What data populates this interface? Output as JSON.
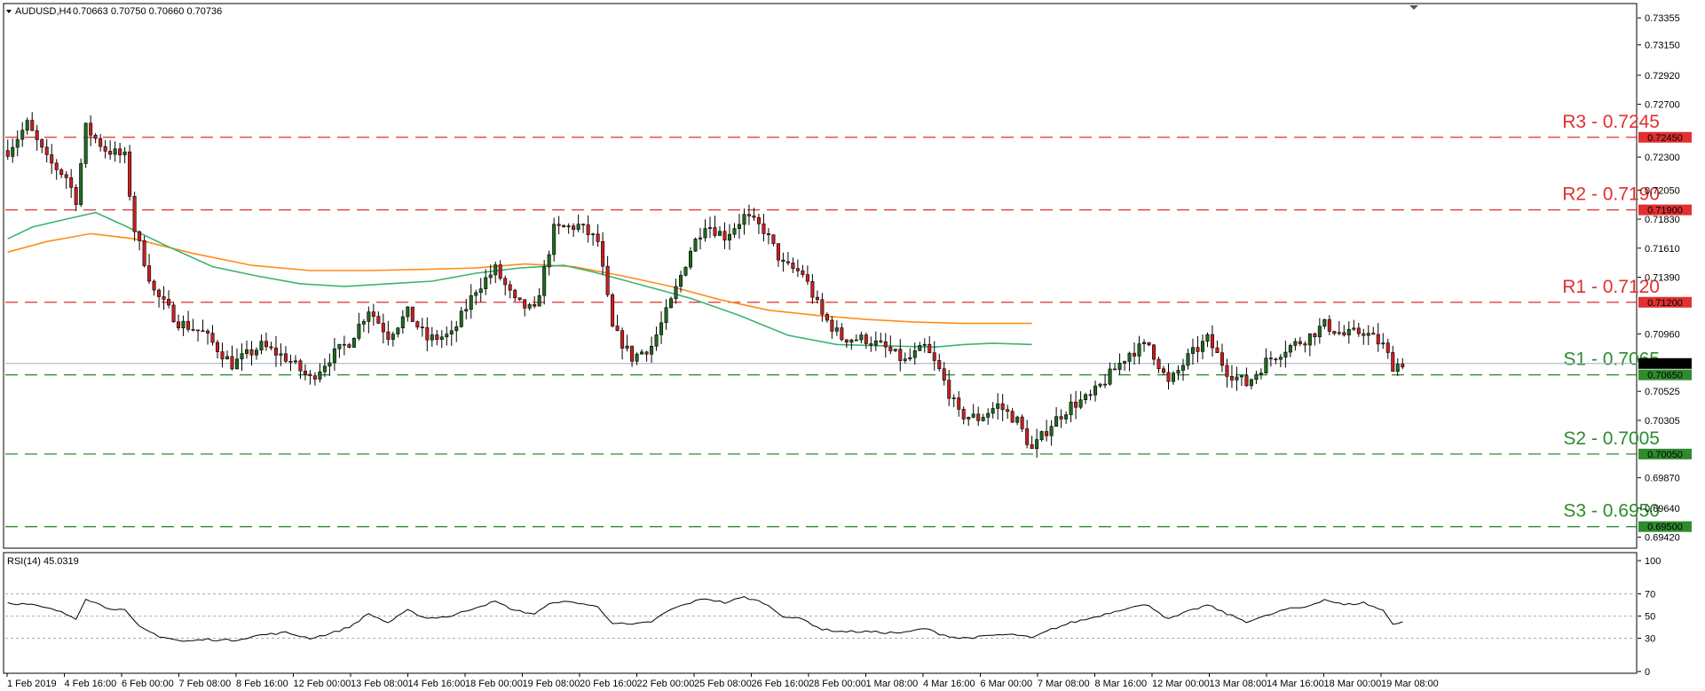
{
  "header": {
    "symbol": "AUDUSD,H4",
    "ohlc": "0.70663 0.70750 0.70660 0.70736"
  },
  "rsi_header": "RSI(14) 45.0319",
  "colors": {
    "bull": "#1e6b1e",
    "bear": "#cc1f1f",
    "ma_fast": "#3cb371",
    "ma_slow": "#ff8c1a",
    "resistance": "#e03030",
    "support": "#2e8b2e",
    "price_line": "#9fb0c0",
    "rsi": "#000000"
  },
  "chart_data": {
    "type": "candlestick",
    "ylim": [
      0.6935,
      0.7345
    ],
    "price_ticks": [
      "0.73355",
      "0.73150",
      "0.72920",
      "0.72700",
      "0.72450",
      "0.72300",
      "0.72050",
      "0.71900",
      "0.71830",
      "0.71610",
      "0.71390",
      "0.71200",
      "0.70960",
      "0.70736",
      "0.70650",
      "0.70525",
      "0.70305",
      "0.70050",
      "0.69870",
      "0.69640",
      "0.69500",
      "0.69420"
    ],
    "time_labels": [
      "1 Feb 2019",
      "4 Feb 16:00",
      "6 Feb 00:00",
      "7 Feb 08:00",
      "8 Feb 16:00",
      "12 Feb 00:00",
      "13 Feb 08:00",
      "14 Feb 16:00",
      "18 Feb 00:00",
      "19 Feb 08:00",
      "20 Feb 16:00",
      "22 Feb 00:00",
      "25 Feb 08:00",
      "26 Feb 16:00",
      "28 Feb 00:00",
      "1 Mar 08:00",
      "4 Mar 16:00",
      "6 Mar 00:00",
      "7 Mar 08:00",
      "8 Mar 16:00",
      "12 Mar 00:00",
      "13 Mar 08:00",
      "14 Mar 16:00",
      "18 Mar 00:00",
      "19 Mar 08:00"
    ],
    "current_price": 0.70736,
    "levels": [
      {
        "label": "R3 - 0.7245",
        "price": 0.7245,
        "tag": "0.72450",
        "kind": "resistance"
      },
      {
        "label": "R2 - 0.7190",
        "price": 0.719,
        "tag": "0.71900",
        "kind": "resistance"
      },
      {
        "label": "R1 - 0.7120",
        "price": 0.712,
        "tag": "0.71200",
        "kind": "resistance"
      },
      {
        "label": "S1 - 0.7065",
        "price": 0.7065,
        "tag": "0.70650",
        "kind": "support"
      },
      {
        "label": "S2 - 0.7005",
        "price": 0.7005,
        "tag": "0.70050",
        "kind": "support"
      },
      {
        "label": "S3 - 0.6950",
        "price": 0.695,
        "tag": "0.69500",
        "kind": "support"
      }
    ],
    "ma_fast": [
      [
        0,
        0.7168
      ],
      [
        5,
        0.7177
      ],
      [
        12,
        0.7183
      ],
      [
        18,
        0.7188
      ],
      [
        24,
        0.7178
      ],
      [
        33,
        0.7162
      ],
      [
        42,
        0.7147
      ],
      [
        51,
        0.714
      ],
      [
        60,
        0.7134
      ],
      [
        69,
        0.7132
      ],
      [
        78,
        0.7134
      ],
      [
        87,
        0.7136
      ],
      [
        96,
        0.7142
      ],
      [
        105,
        0.7146
      ],
      [
        114,
        0.7148
      ],
      [
        120,
        0.7143
      ],
      [
        130,
        0.7133
      ],
      [
        140,
        0.7123
      ],
      [
        150,
        0.711
      ],
      [
        160,
        0.7095
      ],
      [
        170,
        0.7088
      ],
      [
        180,
        0.7087
      ],
      [
        190,
        0.7086
      ],
      [
        196,
        0.7088
      ],
      [
        202,
        0.7089
      ],
      [
        210,
        0.7088
      ]
    ],
    "ma_slow": [
      [
        0,
        0.7158
      ],
      [
        8,
        0.7166
      ],
      [
        17,
        0.7172
      ],
      [
        26,
        0.7168
      ],
      [
        38,
        0.7157
      ],
      [
        50,
        0.7148
      ],
      [
        62,
        0.7144
      ],
      [
        74,
        0.7144
      ],
      [
        86,
        0.7145
      ],
      [
        96,
        0.7146
      ],
      [
        106,
        0.7149
      ],
      [
        116,
        0.7147
      ],
      [
        126,
        0.714
      ],
      [
        136,
        0.7132
      ],
      [
        146,
        0.7122
      ],
      [
        156,
        0.7114
      ],
      [
        166,
        0.711
      ],
      [
        176,
        0.7107
      ],
      [
        186,
        0.7105
      ],
      [
        196,
        0.7104
      ],
      [
        204,
        0.7104
      ],
      [
        210,
        0.7104
      ]
    ],
    "price_path": [
      [
        0,
        0.7235
      ],
      [
        4,
        0.7255
      ],
      [
        8,
        0.7228
      ],
      [
        12,
        0.7215
      ],
      [
        14,
        0.7198
      ],
      [
        16,
        0.7252
      ],
      [
        20,
        0.7236
      ],
      [
        24,
        0.723
      ],
      [
        26,
        0.7175
      ],
      [
        30,
        0.7128
      ],
      [
        35,
        0.7105
      ],
      [
        40,
        0.7097
      ],
      [
        46,
        0.7073
      ],
      [
        52,
        0.7087
      ],
      [
        57,
        0.7078
      ],
      [
        62,
        0.7062
      ],
      [
        66,
        0.7078
      ],
      [
        70,
        0.709
      ],
      [
        74,
        0.7115
      ],
      [
        78,
        0.7095
      ],
      [
        82,
        0.7112
      ],
      [
        86,
        0.7092
      ],
      [
        91,
        0.7095
      ],
      [
        96,
        0.713
      ],
      [
        100,
        0.7145
      ],
      [
        104,
        0.712
      ],
      [
        108,
        0.7113
      ],
      [
        112,
        0.7175
      ],
      [
        117,
        0.7178
      ],
      [
        121,
        0.7166
      ],
      [
        124,
        0.71
      ],
      [
        128,
        0.7078
      ],
      [
        132,
        0.7087
      ],
      [
        136,
        0.712
      ],
      [
        140,
        0.716
      ],
      [
        143,
        0.718
      ],
      [
        147,
        0.717
      ],
      [
        151,
        0.7185
      ],
      [
        155,
        0.7175
      ],
      [
        159,
        0.7148
      ],
      [
        163,
        0.7142
      ],
      [
        167,
        0.711
      ],
      [
        171,
        0.7093
      ],
      [
        176,
        0.7092
      ],
      [
        180,
        0.7085
      ],
      [
        184,
        0.7075
      ],
      [
        188,
        0.7086
      ],
      [
        191,
        0.7068
      ],
      [
        195,
        0.7035
      ],
      [
        199,
        0.7032
      ],
      [
        203,
        0.7042
      ],
      [
        207,
        0.703
      ],
      [
        210,
        0.7008
      ],
      [
        214,
        0.7028
      ],
      [
        218,
        0.7042
      ],
      [
        222,
        0.7048
      ],
      [
        226,
        0.7065
      ],
      [
        230,
        0.7082
      ],
      [
        234,
        0.7088
      ],
      [
        238,
        0.7058
      ],
      [
        242,
        0.7078
      ],
      [
        246,
        0.7092
      ],
      [
        250,
        0.7068
      ],
      [
        254,
        0.7058
      ],
      [
        258,
        0.7075
      ],
      [
        262,
        0.7085
      ],
      [
        266,
        0.7092
      ],
      [
        270,
        0.7103
      ],
      [
        274,
        0.7095
      ],
      [
        278,
        0.7098
      ],
      [
        282,
        0.7087
      ],
      [
        284,
        0.7072
      ],
      [
        286,
        0.7074
      ]
    ],
    "rsi": {
      "ylim": [
        0,
        100
      ],
      "ticks": [
        100,
        70,
        50,
        30,
        0
      ],
      "values": [
        [
          0,
          62
        ],
        [
          5,
          60
        ],
        [
          10,
          55
        ],
        [
          14,
          48
        ],
        [
          16,
          66
        ],
        [
          20,
          58
        ],
        [
          24,
          55
        ],
        [
          27,
          40
        ],
        [
          31,
          32
        ],
        [
          36,
          27
        ],
        [
          41,
          29
        ],
        [
          46,
          28
        ],
        [
          52,
          33
        ],
        [
          57,
          35
        ],
        [
          62,
          30
        ],
        [
          66,
          34
        ],
        [
          70,
          40
        ],
        [
          74,
          52
        ],
        [
          78,
          44
        ],
        [
          82,
          55
        ],
        [
          86,
          48
        ],
        [
          91,
          50
        ],
        [
          96,
          58
        ],
        [
          100,
          63
        ],
        [
          104,
          55
        ],
        [
          108,
          52
        ],
        [
          112,
          63
        ],
        [
          117,
          62
        ],
        [
          121,
          58
        ],
        [
          124,
          44
        ],
        [
          128,
          42
        ],
        [
          132,
          45
        ],
        [
          136,
          56
        ],
        [
          140,
          62
        ],
        [
          143,
          66
        ],
        [
          147,
          62
        ],
        [
          151,
          67
        ],
        [
          155,
          62
        ],
        [
          159,
          50
        ],
        [
          163,
          47
        ],
        [
          167,
          38
        ],
        [
          171,
          36
        ],
        [
          176,
          36
        ],
        [
          180,
          35
        ],
        [
          184,
          35
        ],
        [
          188,
          39
        ],
        [
          191,
          34
        ],
        [
          195,
          30
        ],
        [
          199,
          31
        ],
        [
          203,
          33
        ],
        [
          207,
          33
        ],
        [
          210,
          30
        ],
        [
          214,
          38
        ],
        [
          218,
          44
        ],
        [
          222,
          48
        ],
        [
          226,
          53
        ],
        [
          230,
          58
        ],
        [
          234,
          60
        ],
        [
          238,
          47
        ],
        [
          242,
          54
        ],
        [
          246,
          60
        ],
        [
          250,
          52
        ],
        [
          254,
          45
        ],
        [
          258,
          50
        ],
        [
          262,
          56
        ],
        [
          266,
          58
        ],
        [
          270,
          65
        ],
        [
          274,
          60
        ],
        [
          278,
          62
        ],
        [
          282,
          55
        ],
        [
          284,
          43
        ],
        [
          286,
          45
        ]
      ]
    }
  }
}
